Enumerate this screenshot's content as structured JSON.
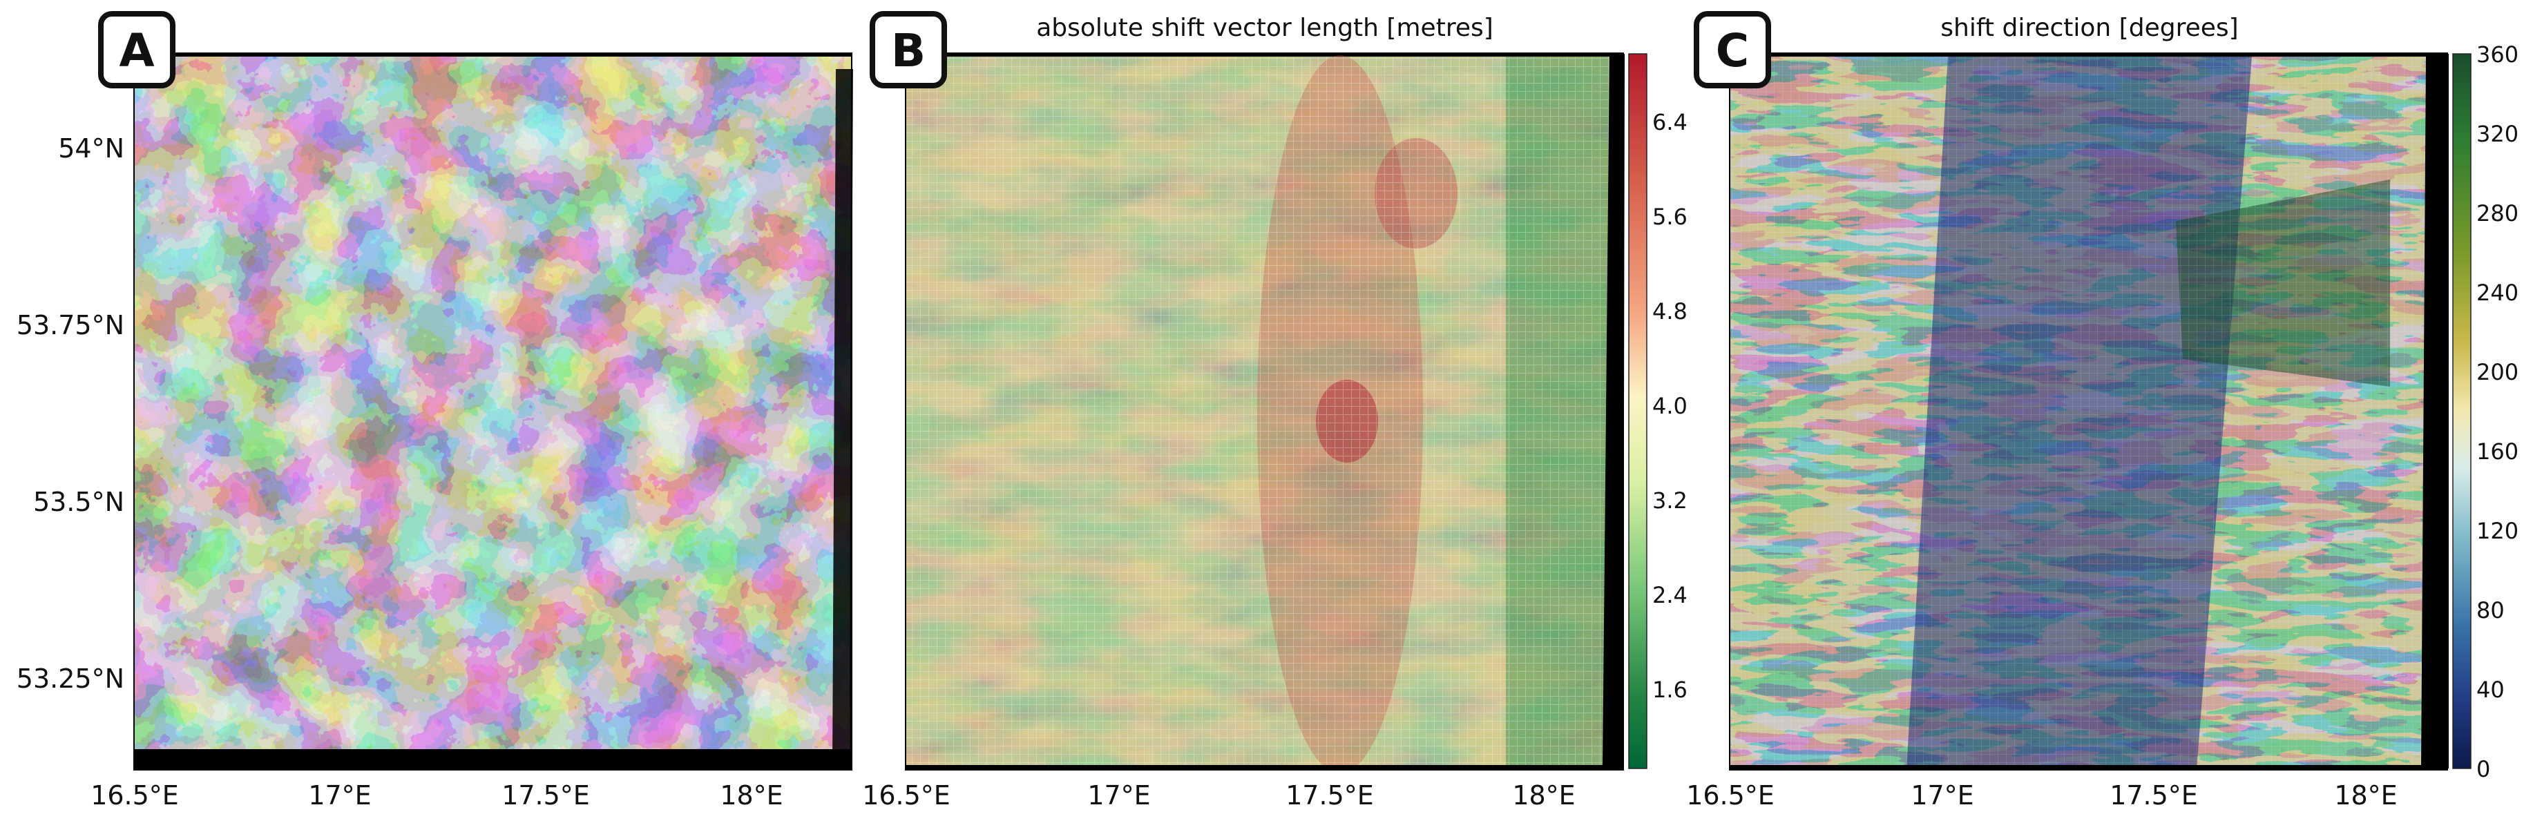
{
  "panels": [
    {
      "badge": "A",
      "title": "",
      "colorbar": null
    },
    {
      "badge": "B",
      "title": "absolute shift vector length [metres]",
      "colorbar": {
        "ticks": [
          "6.4",
          "5.6",
          "4.8",
          "4.0",
          "3.2",
          "2.4",
          "1.6"
        ],
        "colors": [
          "#b2182b",
          "#d6604d",
          "#f4a582",
          "#fdf3c5",
          "#d9f0a3",
          "#78c679",
          "#238443",
          "#006837"
        ]
      }
    },
    {
      "badge": "C",
      "title": "shift direction [degrees]",
      "colorbar": {
        "ticks": [
          "360",
          "320",
          "280",
          "240",
          "200",
          "160",
          "120",
          "80",
          "40",
          "0"
        ],
        "colors": [
          "#1b4d2e",
          "#2e7d32",
          "#7b9a2a",
          "#c8b84a",
          "#f2e8b0",
          "#d7ece9",
          "#7fb8c8",
          "#3a73a8",
          "#233d87",
          "#0d1a4a"
        ]
      }
    }
  ],
  "axes": {
    "x_ticks": [
      "16.5°E",
      "17°E",
      "17.5°E",
      "18°E"
    ],
    "y_ticks": [
      "54°N",
      "53.75°N",
      "53.5°N",
      "53.25°N"
    ]
  }
}
